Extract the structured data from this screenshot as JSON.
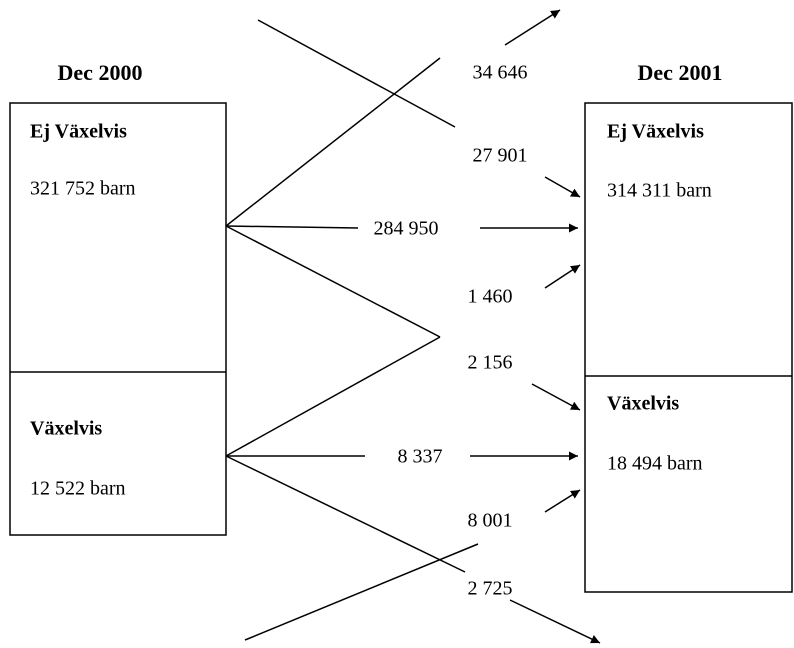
{
  "columns": [
    {
      "title": "Dec 2000",
      "boxes": [
        {
          "label": "Ej Växelvis",
          "count": "321 752 barn"
        },
        {
          "label": "Växelvis",
          "count": "12 522 barn"
        }
      ]
    },
    {
      "title": "Dec 2001",
      "boxes": [
        {
          "label": "Ej Växelvis",
          "count": "314 311 barn"
        },
        {
          "label": "Växelvis",
          "count": "18 494 barn"
        }
      ]
    }
  ],
  "flows": [
    "34 646",
    "27 901",
    "284 950",
    "1 460",
    "2 156",
    "8 337",
    "8 001",
    "2 725"
  ]
}
